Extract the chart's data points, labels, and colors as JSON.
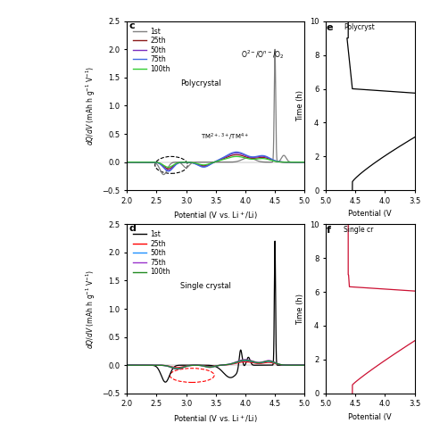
{
  "panel_c": {
    "label": "c",
    "xlim": [
      2.0,
      5.0
    ],
    "ylim": [
      -0.5,
      2.5
    ],
    "yticks": [
      -0.5,
      0.0,
      0.5,
      1.0,
      1.5,
      2.0,
      2.5
    ],
    "xticks": [
      2.0,
      2.5,
      3.0,
      3.5,
      4.0,
      4.5,
      5.0
    ],
    "xlabel": "Potential (V vs. Li+/Li)",
    "ylabel": "dQ/dV (mAh h g-1 V-1)",
    "legend": [
      "1st",
      "25th",
      "50th",
      "75th",
      "100th"
    ],
    "colors": [
      "#808080",
      "#8B1A1A",
      "#7B2FBE",
      "#4169E1",
      "#32CD32"
    ],
    "title": "Polycrystal"
  },
  "panel_d": {
    "label": "d",
    "xlim": [
      2.0,
      5.0
    ],
    "ylim": [
      -0.5,
      2.5
    ],
    "yticks": [
      -0.5,
      0.0,
      0.5,
      1.0,
      1.5,
      2.0,
      2.5
    ],
    "xticks": [
      2.0,
      2.5,
      3.0,
      3.5,
      4.0,
      4.5,
      5.0
    ],
    "xlabel": "Potential (V vs. Li+/Li)",
    "ylabel": "dQ/dV (mAh h g-1 V-1)",
    "legend": [
      "1st",
      "25th",
      "50th",
      "75th",
      "100th"
    ],
    "colors": [
      "black",
      "red",
      "#1E90FF",
      "#9932CC",
      "#228B22"
    ],
    "title": "Single crystal"
  },
  "panel_e": {
    "label": "e",
    "xlim": [
      5.0,
      3.5
    ],
    "ylim": [
      0,
      10
    ],
    "yticks": [
      0,
      2,
      4,
      6,
      8,
      10
    ],
    "xlabel": "Potential (V",
    "ylabel": "Time (h)",
    "title": "Polycryst",
    "color": "black"
  },
  "panel_f": {
    "label": "f",
    "xlim": [
      5.0,
      3.5
    ],
    "ylim": [
      0,
      10
    ],
    "yticks": [
      0,
      2,
      4,
      6,
      8,
      10
    ],
    "xlabel": "Potential (V",
    "ylabel": "Time (h)",
    "title": "Single cr",
    "color": "#CC1133"
  }
}
